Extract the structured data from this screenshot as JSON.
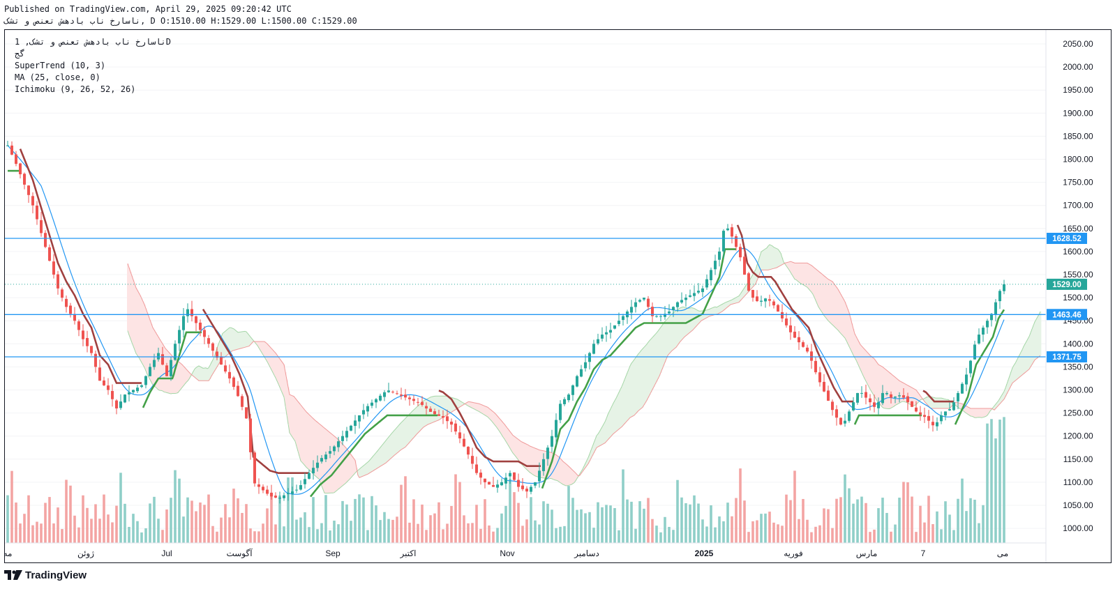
{
  "header": {
    "published": "Published on TradingView.com, April 29, 2025 09:20:42 UTC",
    "ohlc_line": "ناسارخ ناب بادهش تعنص و تشک, D O:1510.00 H:1529.00 L:1500.00 C:1529.00"
  },
  "legend": {
    "symbol": "ناسارخ ناب بادهش تعنص و تشک, 1D",
    "symbol2": "گج",
    "supertrend": "SuperTrend (10, 3)",
    "ma": "MA (25, close, 0)",
    "ichimoku": "Ichimoku (9, 26, 52, 26)"
  },
  "brand": {
    "name": "TradingView"
  },
  "colors": {
    "up": "#26a69a",
    "down": "#ef5350",
    "up_volume": "#8fcfc8",
    "down_volume": "#f3a4a3",
    "supertrend_up": "#43a047",
    "supertrend_down": "#a0403f",
    "ma": "#2196f3",
    "kumo_bull": "#e6f3e6",
    "kumo_bear": "#fde4e4",
    "hline": "#2196f3",
    "last_price": "#26a69a"
  },
  "chart_data": {
    "type": "candlestick",
    "interval": "1D",
    "yaxis": {
      "min": 955,
      "max": 2080,
      "ticks": [
        1000,
        1050,
        1100,
        1150,
        1200,
        1250,
        1300,
        1350,
        1400,
        1450,
        1500,
        1550,
        1600,
        1650,
        1700,
        1750,
        1800,
        1850,
        1900,
        1950,
        2000,
        2050
      ],
      "side": "right"
    },
    "xaxis": {
      "labels": [
        "مه",
        "ژوئن",
        "Jul",
        "آگوست",
        "Sep",
        "اکتبر",
        "Nov",
        "دسامبر",
        "2025",
        "فوریه",
        "مارس",
        "7",
        "می"
      ]
    },
    "price_lines": [
      {
        "value": 1628.52,
        "label": "1628.52"
      },
      {
        "value": 1463.46,
        "label": "1463.46"
      },
      {
        "value": 1371.75,
        "label": "1371.75"
      }
    ],
    "last_price": {
      "value": 1529.0,
      "label": "1529.00"
    },
    "approx_path": [
      [
        0,
        1830
      ],
      [
        6,
        1790
      ],
      [
        12,
        1745
      ],
      [
        18,
        1700
      ],
      [
        24,
        1640
      ],
      [
        30,
        1580
      ],
      [
        36,
        1520
      ],
      [
        42,
        1480
      ],
      [
        48,
        1450
      ],
      [
        54,
        1410
      ],
      [
        60,
        1380
      ],
      [
        66,
        1320
      ],
      [
        72,
        1300
      ],
      [
        78,
        1260
      ],
      [
        84,
        1290
      ],
      [
        90,
        1300
      ],
      [
        96,
        1310
      ],
      [
        102,
        1350
      ],
      [
        108,
        1380
      ],
      [
        114,
        1330
      ],
      [
        120,
        1400
      ],
      [
        128,
        1480
      ],
      [
        136,
        1440
      ],
      [
        144,
        1400
      ],
      [
        152,
        1360
      ],
      [
        160,
        1320
      ],
      [
        166,
        1280
      ],
      [
        172,
        1230
      ],
      [
        176,
        1100
      ],
      [
        182,
        1085
      ],
      [
        188,
        1070
      ],
      [
        194,
        1065
      ],
      [
        200,
        1075
      ],
      [
        208,
        1085
      ],
      [
        216,
        1120
      ],
      [
        224,
        1150
      ],
      [
        232,
        1170
      ],
      [
        240,
        1200
      ],
      [
        248,
        1230
      ],
      [
        256,
        1260
      ],
      [
        264,
        1280
      ],
      [
        272,
        1300
      ],
      [
        280,
        1290
      ],
      [
        288,
        1280
      ],
      [
        296,
        1270
      ],
      [
        304,
        1250
      ],
      [
        312,
        1240
      ],
      [
        318,
        1225
      ],
      [
        324,
        1195
      ],
      [
        330,
        1160
      ],
      [
        336,
        1120
      ],
      [
        342,
        1100
      ],
      [
        348,
        1090
      ],
      [
        354,
        1100
      ],
      [
        360,
        1120
      ],
      [
        366,
        1090
      ],
      [
        372,
        1080
      ],
      [
        378,
        1100
      ],
      [
        384,
        1150
      ],
      [
        390,
        1200
      ],
      [
        396,
        1270
      ],
      [
        402,
        1290
      ],
      [
        408,
        1330
      ],
      [
        414,
        1360
      ],
      [
        420,
        1400
      ],
      [
        426,
        1420
      ],
      [
        432,
        1430
      ],
      [
        438,
        1450
      ],
      [
        444,
        1470
      ],
      [
        450,
        1490
      ],
      [
        456,
        1500
      ],
      [
        462,
        1460
      ],
      [
        468,
        1460
      ],
      [
        474,
        1470
      ],
      [
        480,
        1490
      ],
      [
        486,
        1500
      ],
      [
        492,
        1510
      ],
      [
        498,
        1520
      ],
      [
        504,
        1560
      ],
      [
        510,
        1600
      ],
      [
        514,
        1660
      ],
      [
        518,
        1640
      ],
      [
        522,
        1610
      ],
      [
        526,
        1580
      ],
      [
        530,
        1520
      ],
      [
        534,
        1500
      ],
      [
        538,
        1490
      ],
      [
        544,
        1500
      ],
      [
        550,
        1480
      ],
      [
        556,
        1450
      ],
      [
        562,
        1420
      ],
      [
        568,
        1400
      ],
      [
        574,
        1380
      ],
      [
        580,
        1330
      ],
      [
        586,
        1290
      ],
      [
        592,
        1250
      ],
      [
        598,
        1220
      ],
      [
        604,
        1260
      ],
      [
        610,
        1300
      ],
      [
        616,
        1280
      ],
      [
        622,
        1260
      ],
      [
        628,
        1300
      ],
      [
        634,
        1280
      ],
      [
        640,
        1290
      ],
      [
        646,
        1270
      ],
      [
        652,
        1250
      ],
      [
        658,
        1240
      ],
      [
        664,
        1220
      ],
      [
        670,
        1250
      ],
      [
        676,
        1260
      ],
      [
        682,
        1300
      ],
      [
        688,
        1340
      ],
      [
        694,
        1410
      ],
      [
        700,
        1440
      ],
      [
        706,
        1470
      ],
      [
        710,
        1510
      ],
      [
        714,
        1529
      ]
    ],
    "indicators": [
      "SuperTrend (10, 3)",
      "MA (25, close, 0)",
      "Ichimoku (9, 26, 52, 26)"
    ]
  }
}
